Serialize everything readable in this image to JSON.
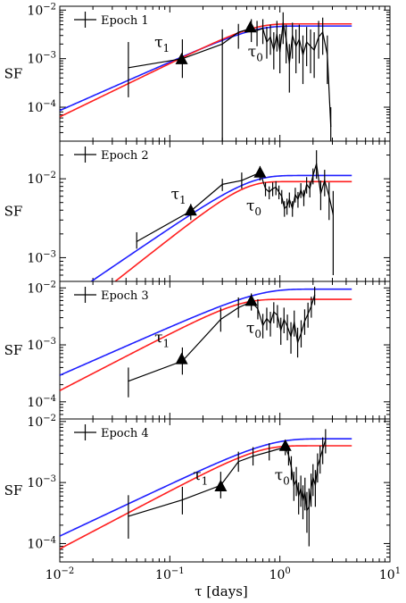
{
  "figure": {
    "xlabel": "τ [days]",
    "xlim": [
      0.01,
      10
    ],
    "x_scale": "log",
    "x_ticks": [
      {
        "value": 0.01,
        "base": "10",
        "exp": "−2"
      },
      {
        "value": 0.1,
        "base": "10",
        "exp": "−1"
      },
      {
        "value": 1,
        "base": "10",
        "exp": "0"
      },
      {
        "value": 10,
        "base": "10",
        "exp": "1"
      }
    ],
    "colors": {
      "data": "#000000",
      "model_blue": "#1f1fff",
      "model_red": "#ff1f1f"
    }
  },
  "chart_data": [
    {
      "type": "line",
      "panel": "Epoch 1",
      "legend": "Epoch 1",
      "ylabel": "SF",
      "ylim": [
        2e-05,
        0.012
      ],
      "y_scale": "log",
      "y_ticks": [
        {
          "value": 0.0001,
          "base": "10",
          "exp": "−4"
        },
        {
          "value": 0.001,
          "base": "10",
          "exp": "−3"
        },
        {
          "value": 0.01,
          "base": "10",
          "exp": "−2"
        }
      ],
      "series": [
        {
          "role": "data",
          "points": [
            {
              "x": 0.042,
              "y": 0.00065,
              "lo": 0.00016,
              "hi": 0.0022
            },
            {
              "x": 0.13,
              "y": 0.001,
              "lo": 0.0004,
              "hi": 0.0025
            },
            {
              "x": 0.3,
              "y": 0.002,
              "lo": 2e-05,
              "hi": 0.004
            },
            {
              "x": 0.42,
              "y": 0.0035,
              "lo": 0.0016,
              "hi": 0.0052
            },
            {
              "x": 0.55,
              "y": 0.0042,
              "lo": 0.0022,
              "hi": 0.0065
            },
            {
              "x": 0.62,
              "y": 0.0038,
              "lo": 0.0018,
              "hi": 0.006
            },
            {
              "x": 0.7,
              "y": 0.0042,
              "lo": 0.002,
              "hi": 0.0065
            },
            {
              "x": 0.76,
              "y": 0.0022,
              "lo": 0.001,
              "hi": 0.0045
            },
            {
              "x": 0.82,
              "y": 0.0028,
              "lo": 0.0012,
              "hi": 0.005
            },
            {
              "x": 0.88,
              "y": 0.0015,
              "lo": 0.0006,
              "hi": 0.0035
            },
            {
              "x": 0.94,
              "y": 0.0032,
              "lo": 0.0014,
              "hi": 0.006
            },
            {
              "x": 1.0,
              "y": 0.0014,
              "lo": 0.0005,
              "hi": 0.0032
            },
            {
              "x": 1.07,
              "y": 0.0055,
              "lo": 0.002,
              "hi": 0.009
            },
            {
              "x": 1.14,
              "y": 0.0025,
              "lo": 0.0008,
              "hi": 0.005
            },
            {
              "x": 1.22,
              "y": 0.0008,
              "lo": 0.0002,
              "hi": 0.002
            },
            {
              "x": 1.3,
              "y": 0.003,
              "lo": 0.001,
              "hi": 0.0055
            },
            {
              "x": 1.4,
              "y": 0.0018,
              "lo": 0.0005,
              "hi": 0.004
            },
            {
              "x": 1.5,
              "y": 0.0025,
              "lo": 0.0008,
              "hi": 0.005
            },
            {
              "x": 1.62,
              "y": 0.0012,
              "lo": 0.0003,
              "hi": 0.003
            },
            {
              "x": 1.75,
              "y": 0.0022,
              "lo": 0.0007,
              "hi": 0.0045
            },
            {
              "x": 1.9,
              "y": 0.0018,
              "lo": 0.0005,
              "hi": 0.004
            },
            {
              "x": 2.05,
              "y": 0.0015,
              "lo": 0.0004,
              "hi": 0.0035
            },
            {
              "x": 2.25,
              "y": 0.0028,
              "lo": 0.001,
              "hi": 0.006
            },
            {
              "x": 2.45,
              "y": 0.0035,
              "lo": 0.0012,
              "hi": 0.007
            },
            {
              "x": 2.7,
              "y": 0.0012,
              "lo": 0.0003,
              "hi": 0.003
            },
            {
              "x": 2.9,
              "y": 4e-05,
              "lo": 2e-05,
              "hi": 0.0001
            }
          ]
        },
        {
          "role": "model",
          "color": "blue",
          "sf_inf": 0.0047,
          "tau0": 0.55,
          "beta": 2
        },
        {
          "role": "model",
          "color": "red",
          "sf_inf": 0.0052,
          "tau0": 0.55,
          "beta": 2.2
        }
      ],
      "markers": [
        {
          "x": 0.128,
          "y": 0.00095
        },
        {
          "x": 0.54,
          "y": 0.0043
        }
      ],
      "annotations": [
        {
          "text": "τ",
          "sub": "1",
          "x": 0.085,
          "y": 0.0017
        },
        {
          "text": "τ",
          "sub": "0",
          "x": 0.6,
          "y": 0.0011
        }
      ]
    },
    {
      "type": "line",
      "panel": "Epoch 2",
      "legend": "Epoch 2",
      "ylabel": "SF",
      "ylim": [
        0.0005,
        0.03
      ],
      "y_scale": "log",
      "y_ticks": [
        {
          "value": 0.001,
          "base": "10",
          "exp": "−3"
        },
        {
          "value": 0.01,
          "base": "10",
          "exp": "−2"
        }
      ],
      "series": [
        {
          "role": "data",
          "points": [
            {
              "x": 0.05,
              "y": 0.0016,
              "lo": 0.0013,
              "hi": 0.0021
            },
            {
              "x": 0.155,
              "y": 0.0039,
              "lo": 0.003,
              "hi": 0.0048
            },
            {
              "x": 0.3,
              "y": 0.0085,
              "lo": 0.007,
              "hi": 0.01
            },
            {
              "x": 0.45,
              "y": 0.0095,
              "lo": 0.0075,
              "hi": 0.012
            },
            {
              "x": 0.66,
              "y": 0.012,
              "lo": 0.0095,
              "hi": 0.0145
            },
            {
              "x": 0.74,
              "y": 0.0075,
              "lo": 0.006,
              "hi": 0.009
            },
            {
              "x": 0.8,
              "y": 0.0068,
              "lo": 0.0055,
              "hi": 0.008
            },
            {
              "x": 0.86,
              "y": 0.0075,
              "lo": 0.006,
              "hi": 0.009
            },
            {
              "x": 0.92,
              "y": 0.0078,
              "lo": 0.0062,
              "hi": 0.0093
            },
            {
              "x": 0.98,
              "y": 0.0068,
              "lo": 0.0055,
              "hi": 0.0082
            },
            {
              "x": 1.04,
              "y": 0.006,
              "lo": 0.0048,
              "hi": 0.0072
            },
            {
              "x": 1.1,
              "y": 0.0042,
              "lo": 0.0033,
              "hi": 0.0052
            },
            {
              "x": 1.16,
              "y": 0.0045,
              "lo": 0.0035,
              "hi": 0.0056
            },
            {
              "x": 1.22,
              "y": 0.0055,
              "lo": 0.0043,
              "hi": 0.0067
            },
            {
              "x": 1.3,
              "y": 0.0042,
              "lo": 0.0033,
              "hi": 0.0052
            },
            {
              "x": 1.38,
              "y": 0.0063,
              "lo": 0.005,
              "hi": 0.0077
            },
            {
              "x": 1.46,
              "y": 0.0055,
              "lo": 0.0043,
              "hi": 0.0068
            },
            {
              "x": 1.55,
              "y": 0.0072,
              "lo": 0.0057,
              "hi": 0.0088
            },
            {
              "x": 1.65,
              "y": 0.0058,
              "lo": 0.0045,
              "hi": 0.0072
            },
            {
              "x": 1.75,
              "y": 0.0085,
              "lo": 0.0065,
              "hi": 0.0105
            },
            {
              "x": 1.87,
              "y": 0.0075,
              "lo": 0.0058,
              "hi": 0.0092
            },
            {
              "x": 2.0,
              "y": 0.011,
              "lo": 0.0085,
              "hi": 0.0135
            },
            {
              "x": 2.15,
              "y": 0.0155,
              "lo": 0.01,
              "hi": 0.023
            },
            {
              "x": 2.35,
              "y": 0.0065,
              "lo": 0.004,
              "hi": 0.0095
            },
            {
              "x": 2.55,
              "y": 0.0095,
              "lo": 0.006,
              "hi": 0.013
            },
            {
              "x": 2.8,
              "y": 0.006,
              "lo": 0.003,
              "hi": 0.009
            },
            {
              "x": 3.05,
              "y": 0.0035,
              "lo": 0.0006,
              "hi": 0.007
            }
          ]
        },
        {
          "role": "model",
          "color": "blue",
          "sf_inf": 0.011,
          "tau0": 0.5,
          "beta": 1.9
        },
        {
          "role": "model",
          "color": "red",
          "sf_inf": 0.0092,
          "tau0": 0.45,
          "beta": 2.2
        }
      ],
      "markers": [
        {
          "x": 0.155,
          "y": 0.0039
        },
        {
          "x": 0.66,
          "y": 0.0118
        }
      ],
      "annotations": [
        {
          "text": "τ",
          "sub": "1",
          "x": 0.12,
          "y": 0.0055
        },
        {
          "text": "τ",
          "sub": "0",
          "x": 0.58,
          "y": 0.0039
        }
      ]
    },
    {
      "type": "line",
      "panel": "Epoch 3",
      "legend": "Epoch 3",
      "ylabel": "SF",
      "ylim": [
        5e-05,
        0.013
      ],
      "y_scale": "log",
      "y_ticks": [
        {
          "value": 0.0001,
          "base": "10",
          "exp": "−4"
        },
        {
          "value": 0.001,
          "base": "10",
          "exp": "−3"
        },
        {
          "value": 0.01,
          "base": "10",
          "exp": "−2"
        }
      ],
      "series": [
        {
          "role": "data",
          "points": [
            {
              "x": 0.042,
              "y": 0.00023,
              "lo": 0.00012,
              "hi": 0.0004
            },
            {
              "x": 0.13,
              "y": 0.00052,
              "lo": 0.0003,
              "hi": 0.0009
            },
            {
              "x": 0.29,
              "y": 0.0028,
              "lo": 0.0017,
              "hi": 0.0045
            },
            {
              "x": 0.42,
              "y": 0.0045,
              "lo": 0.003,
              "hi": 0.0068
            },
            {
              "x": 0.55,
              "y": 0.0057,
              "lo": 0.004,
              "hi": 0.008
            },
            {
              "x": 0.63,
              "y": 0.0043,
              "lo": 0.0028,
              "hi": 0.0063
            },
            {
              "x": 0.7,
              "y": 0.0022,
              "lo": 0.0013,
              "hi": 0.0035
            },
            {
              "x": 0.76,
              "y": 0.0029,
              "lo": 0.0018,
              "hi": 0.0045
            },
            {
              "x": 0.82,
              "y": 0.0024,
              "lo": 0.0014,
              "hi": 0.0038
            },
            {
              "x": 0.88,
              "y": 0.0038,
              "lo": 0.0024,
              "hi": 0.0056
            },
            {
              "x": 0.95,
              "y": 0.0033,
              "lo": 0.002,
              "hi": 0.005
            },
            {
              "x": 1.02,
              "y": 0.0018,
              "lo": 0.001,
              "hi": 0.003
            },
            {
              "x": 1.09,
              "y": 0.0028,
              "lo": 0.0016,
              "hi": 0.0045
            },
            {
              "x": 1.17,
              "y": 0.0021,
              "lo": 0.0012,
              "hi": 0.0034
            },
            {
              "x": 1.26,
              "y": 0.0014,
              "lo": 0.0007,
              "hi": 0.0025
            },
            {
              "x": 1.35,
              "y": 0.0025,
              "lo": 0.0014,
              "hi": 0.004
            },
            {
              "x": 1.45,
              "y": 0.0011,
              "lo": 0.0006,
              "hi": 0.002
            },
            {
              "x": 1.56,
              "y": 0.0016,
              "lo": 0.0009,
              "hi": 0.0027
            },
            {
              "x": 1.68,
              "y": 0.0026,
              "lo": 0.0015,
              "hi": 0.0042
            },
            {
              "x": 1.8,
              "y": 0.0035,
              "lo": 0.002,
              "hi": 0.0055
            },
            {
              "x": 1.93,
              "y": 0.0048,
              "lo": 0.003,
              "hi": 0.007
            },
            {
              "x": 2.07,
              "y": 0.0075,
              "lo": 0.005,
              "hi": 0.0105
            }
          ]
        },
        {
          "role": "model",
          "color": "blue",
          "sf_inf": 0.0095,
          "tau0": 0.6,
          "beta": 1.7
        },
        {
          "role": "model",
          "color": "red",
          "sf_inf": 0.0063,
          "tau0": 0.4,
          "beta": 2.0
        }
      ],
      "markers": [
        {
          "x": 0.128,
          "y": 0.00055
        },
        {
          "x": 0.55,
          "y": 0.0058
        }
      ],
      "annotations": [
        {
          "text": "τ",
          "sub": "1",
          "x": 0.085,
          "y": 0.0011
        },
        {
          "text": "τ",
          "sub": "0",
          "x": 0.58,
          "y": 0.0016
        }
      ]
    },
    {
      "type": "line",
      "panel": "Epoch 4",
      "legend": "Epoch 4",
      "ylabel": "SF",
      "ylim": [
        5e-05,
        0.011
      ],
      "y_scale": "log",
      "y_ticks": [
        {
          "value": 0.0001,
          "base": "10",
          "exp": "−4"
        },
        {
          "value": 0.001,
          "base": "10",
          "exp": "−3"
        },
        {
          "value": 0.01,
          "base": "10",
          "exp": "−2"
        }
      ],
      "series": [
        {
          "role": "data",
          "points": [
            {
              "x": 0.042,
              "y": 0.00028,
              "lo": 0.00012,
              "hi": 0.00062
            },
            {
              "x": 0.13,
              "y": 0.00052,
              "lo": 0.0003,
              "hi": 0.00085
            },
            {
              "x": 0.29,
              "y": 0.0009,
              "lo": 0.00055,
              "hi": 0.0015
            },
            {
              "x": 0.42,
              "y": 0.0022,
              "lo": 0.0015,
              "hi": 0.0032
            },
            {
              "x": 0.57,
              "y": 0.0027,
              "lo": 0.0019,
              "hi": 0.0038
            },
            {
              "x": 0.8,
              "y": 0.0032,
              "lo": 0.0023,
              "hi": 0.0044
            },
            {
              "x": 1.12,
              "y": 0.0038,
              "lo": 0.0028,
              "hi": 0.005
            },
            {
              "x": 1.2,
              "y": 0.0028,
              "lo": 0.0019,
              "hi": 0.0039
            },
            {
              "x": 1.27,
              "y": 0.0018,
              "lo": 0.0011,
              "hi": 0.0027
            },
            {
              "x": 1.34,
              "y": 0.0009,
              "lo": 0.0005,
              "hi": 0.0015
            },
            {
              "x": 1.41,
              "y": 0.0011,
              "lo": 0.0006,
              "hi": 0.0018
            },
            {
              "x": 1.48,
              "y": 0.0006,
              "lo": 0.0003,
              "hi": 0.001
            },
            {
              "x": 1.55,
              "y": 0.0008,
              "lo": 0.0004,
              "hi": 0.0013
            },
            {
              "x": 1.62,
              "y": 0.0005,
              "lo": 0.00025,
              "hi": 0.0009
            },
            {
              "x": 1.69,
              "y": 0.0007,
              "lo": 0.00035,
              "hi": 0.0012
            },
            {
              "x": 1.76,
              "y": 0.00035,
              "lo": 0.00015,
              "hi": 0.0007
            },
            {
              "x": 1.84,
              "y": 0.0004,
              "lo": 9e-05,
              "hi": 0.0008
            },
            {
              "x": 1.92,
              "y": 0.0008,
              "lo": 0.0004,
              "hi": 0.0014
            },
            {
              "x": 2.0,
              "y": 0.0012,
              "lo": 0.0006,
              "hi": 0.002
            },
            {
              "x": 2.1,
              "y": 0.0009,
              "lo": 0.0004,
              "hi": 0.0016
            },
            {
              "x": 2.2,
              "y": 0.0018,
              "lo": 0.001,
              "hi": 0.003
            },
            {
              "x": 2.32,
              "y": 0.0025,
              "lo": 0.0014,
              "hi": 0.004
            },
            {
              "x": 2.45,
              "y": 0.0035,
              "lo": 0.002,
              "hi": 0.0055
            },
            {
              "x": 2.6,
              "y": 0.005,
              "lo": 0.003,
              "hi": 0.0075
            }
          ]
        },
        {
          "role": "model",
          "color": "blue",
          "sf_inf": 0.0052,
          "tau0": 0.75,
          "beta": 1.7
        },
        {
          "role": "model",
          "color": "red",
          "sf_inf": 0.004,
          "tau0": 0.6,
          "beta": 1.9
        }
      ],
      "markers": [
        {
          "x": 0.29,
          "y": 0.00085
        },
        {
          "x": 1.12,
          "y": 0.0039
        }
      ],
      "annotations": [
        {
          "text": "τ",
          "sub": "1",
          "x": 0.19,
          "y": 0.0011
        },
        {
          "text": "τ",
          "sub": "0",
          "x": 1.05,
          "y": 0.0011
        }
      ]
    }
  ]
}
